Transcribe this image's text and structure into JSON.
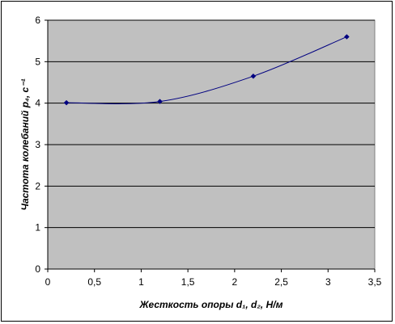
{
  "chart_data": {
    "type": "line",
    "title": "",
    "xlabel": "Жесткость опоры d₁, d₂, Н/м",
    "ylabel": "Частота колебаний p₄, с⁻¹",
    "xlim": [
      0,
      3.5
    ],
    "ylim": [
      0,
      6
    ],
    "x_ticks": [
      "0",
      "0,5",
      "1",
      "1,5",
      "2",
      "2,5",
      "3",
      "3,5"
    ],
    "y_ticks": [
      "0",
      "1",
      "2",
      "3",
      "4",
      "5",
      "6"
    ],
    "grid": "horizontal",
    "legend": "none",
    "series": [
      {
        "x": [
          0.2,
          1.2,
          2.2,
          3.2
        ],
        "y": [
          4.01,
          4.04,
          4.65,
          5.6
        ]
      }
    ],
    "colors": {
      "plot_background": "#c0c0c0",
      "line": "#000080",
      "marker": "#000080",
      "grid": "#000000"
    }
  }
}
